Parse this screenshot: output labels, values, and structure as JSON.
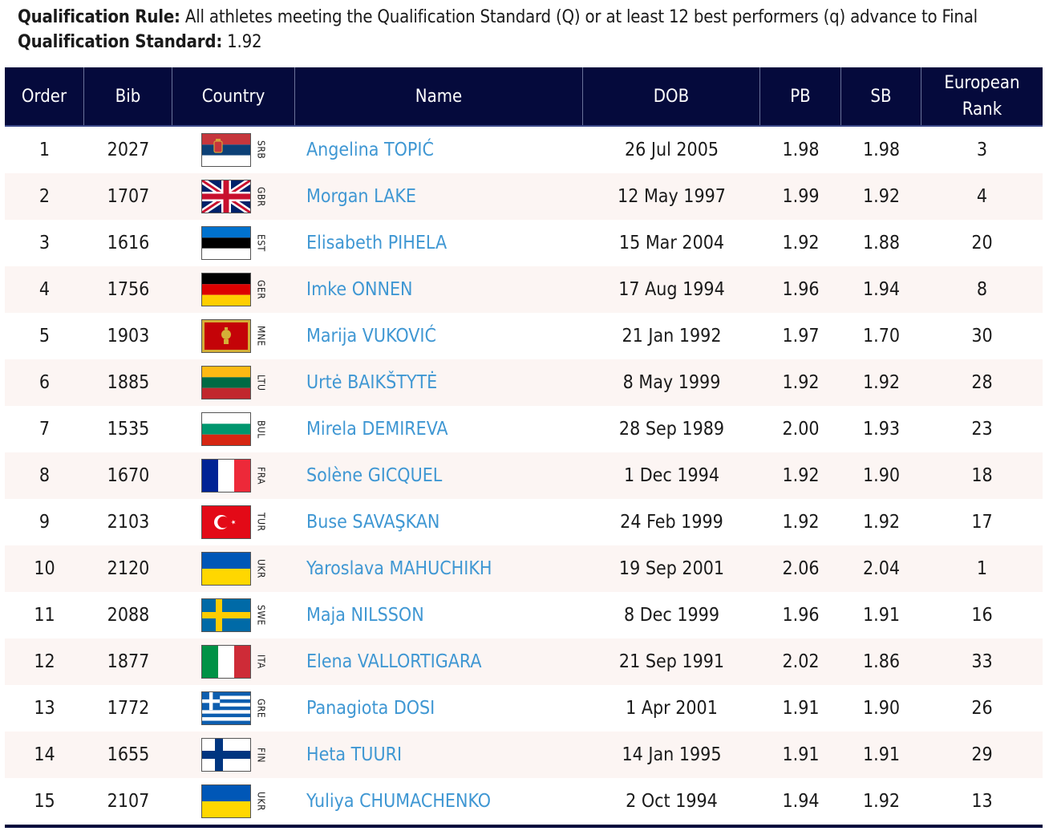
{
  "rule": {
    "label": "Qualification Rule:",
    "text": " All athletes meeting the Qualification Standard (Q) or at least 12 best performers (q) advance to Final",
    "standard_label": "Qualification Standard:",
    "standard_value": " 1.92"
  },
  "columns": {
    "order": "Order",
    "bib": "Bib",
    "country": "Country",
    "name": "Name",
    "dob": "DOB",
    "pb": "PB",
    "sb": "SB",
    "rank_line1": "European",
    "rank_line2": "Rank"
  },
  "rows": [
    {
      "order": "1",
      "bib": "2027",
      "flag": "srb-flag-icon",
      "code": "SRB",
      "name": "Angelina TOPIĆ",
      "dob": "26 Jul 2005",
      "pb": "1.98",
      "sb": "1.98",
      "rank": "3"
    },
    {
      "order": "2",
      "bib": "1707",
      "flag": "gbr-flag-icon",
      "code": "GBR",
      "name": "Morgan LAKE",
      "dob": "12 May 1997",
      "pb": "1.99",
      "sb": "1.92",
      "rank": "4"
    },
    {
      "order": "3",
      "bib": "1616",
      "flag": "est-flag-icon",
      "code": "EST",
      "name": "Elisabeth PIHELA",
      "dob": "15 Mar 2004",
      "pb": "1.92",
      "sb": "1.88",
      "rank": "20"
    },
    {
      "order": "4",
      "bib": "1756",
      "flag": "ger-flag-icon",
      "code": "GER",
      "name": "Imke ONNEN",
      "dob": "17 Aug 1994",
      "pb": "1.96",
      "sb": "1.94",
      "rank": "8"
    },
    {
      "order": "5",
      "bib": "1903",
      "flag": "mne-flag-icon",
      "code": "MNE",
      "name": "Marija VUKOVIĆ",
      "dob": "21 Jan 1992",
      "pb": "1.97",
      "sb": "1.70",
      "rank": "30"
    },
    {
      "order": "6",
      "bib": "1885",
      "flag": "ltu-flag-icon",
      "code": "LTU",
      "name": "Urtė BAIKŠTYTĖ",
      "dob": "8 May 1999",
      "pb": "1.92",
      "sb": "1.92",
      "rank": "28"
    },
    {
      "order": "7",
      "bib": "1535",
      "flag": "bul-flag-icon",
      "code": "BUL",
      "name": "Mirela DEMIREVA",
      "dob": "28 Sep 1989",
      "pb": "2.00",
      "sb": "1.93",
      "rank": "23"
    },
    {
      "order": "8",
      "bib": "1670",
      "flag": "fra-flag-icon",
      "code": "FRA",
      "name": "Solène GICQUEL",
      "dob": "1 Dec 1994",
      "pb": "1.92",
      "sb": "1.90",
      "rank": "18"
    },
    {
      "order": "9",
      "bib": "2103",
      "flag": "tur-flag-icon",
      "code": "TUR",
      "name": "Buse SAVAŞKAN",
      "dob": "24 Feb 1999",
      "pb": "1.92",
      "sb": "1.92",
      "rank": "17"
    },
    {
      "order": "10",
      "bib": "2120",
      "flag": "ukr-flag-icon",
      "code": "UKR",
      "name": "Yaroslava MAHUCHIKH",
      "dob": "19 Sep 2001",
      "pb": "2.06",
      "sb": "2.04",
      "rank": "1"
    },
    {
      "order": "11",
      "bib": "2088",
      "flag": "swe-flag-icon",
      "code": "SWE",
      "name": "Maja NILSSON",
      "dob": "8 Dec 1999",
      "pb": "1.96",
      "sb": "1.91",
      "rank": "16"
    },
    {
      "order": "12",
      "bib": "1877",
      "flag": "ita-flag-icon",
      "code": "ITA",
      "name": "Elena VALLORTIGARA",
      "dob": "21 Sep 1991",
      "pb": "2.02",
      "sb": "1.86",
      "rank": "33"
    },
    {
      "order": "13",
      "bib": "1772",
      "flag": "gre-flag-icon",
      "code": "GRE",
      "name": "Panagiota DOSI",
      "dob": "1 Apr 2001",
      "pb": "1.91",
      "sb": "1.90",
      "rank": "26"
    },
    {
      "order": "14",
      "bib": "1655",
      "flag": "fin-flag-icon",
      "code": "FIN",
      "name": "Heta TUURI",
      "dob": "14 Jan 1995",
      "pb": "1.91",
      "sb": "1.91",
      "rank": "29"
    },
    {
      "order": "15",
      "bib": "2107",
      "flag": "ukr-flag-icon",
      "code": "UKR",
      "name": "Yuliya CHUMACHENKO",
      "dob": "2 Oct 1994",
      "pb": "1.94",
      "sb": "1.92",
      "rank": "13"
    }
  ],
  "colors": {
    "header_bg": "#050a3c",
    "name_link": "#3f97d3",
    "alt_row": "#fcf5f3"
  }
}
